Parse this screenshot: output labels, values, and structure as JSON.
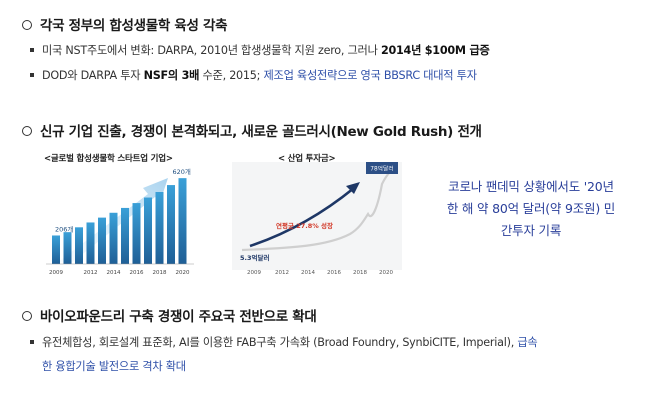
{
  "section1": {
    "heading": "각국 정부의 합성생물학 육성 각축",
    "bullet1": {
      "prefix": "미국 NST주도에서 변화: DARPA, 2010년 합생생물학 지원 zero, 그러나 ",
      "bold": "2014년 $100M 급증"
    },
    "bullet2": {
      "prefix": "DOD와 DARPA 투자 ",
      "bold": "NSF의 3배",
      "middle": " 수준, 2015; ",
      "blue": "제조업 육성전략으로 영국 BBSRC 대대적 투자"
    }
  },
  "section2": {
    "heading": "신규 기업 진출, 경쟁이 본격화되고, 새로운 골드러시(New Gold Rush) 전개"
  },
  "section3": {
    "heading": "바이오파운드리 구축 경쟁이 주요국 전반으로 확대",
    "bullet1": {
      "line1_prefix": "유전체합성, 회로설계 표준화, AI를 이용한 FAB구축 가속화 (Broad Foundry, SynbiCITE, Imperial), ",
      "line1_blue": "급속",
      "line2_blue": "한 융합기술 발전으로 격차 확대"
    }
  },
  "callout": {
    "line1": "코로나 팬데믹 상황에서도 '20년",
    "line2": "한 해 약 80억 달러(약 9조원) 민",
    "line3": "간투자 기록"
  },
  "colors": {
    "bar_dark": "#1f5f96",
    "bar_mid": "#2a86c4",
    "bar_light": "#4fb3e3",
    "callout_blue": "#2a3f9a",
    "arrow_navy": "#1e3766"
  },
  "chart_data": [
    {
      "type": "bar",
      "title": "<글로벌 합성생물학 스타트업 기업>",
      "categories": [
        "2009",
        "2010",
        "2011",
        "2012",
        "2013",
        "2014",
        "2015",
        "2016",
        "2017",
        "2018",
        "2019",
        "2020"
      ],
      "values": [
        206,
        230,
        265,
        300,
        335,
        370,
        405,
        440,
        480,
        520,
        570,
        620
      ],
      "annotations": [
        "206개",
        "620개"
      ],
      "tick_labels": [
        "2009",
        "2012",
        "2014",
        "2016",
        "2018",
        "2020"
      ]
    },
    {
      "type": "line",
      "title": "< 산업 투자금>",
      "x": [
        "2009",
        "2012",
        "2014",
        "2016",
        "2018",
        "2020"
      ],
      "annotations": [
        "5.3억달러",
        "78억달러",
        "연평균 27.8% 성장"
      ]
    }
  ]
}
